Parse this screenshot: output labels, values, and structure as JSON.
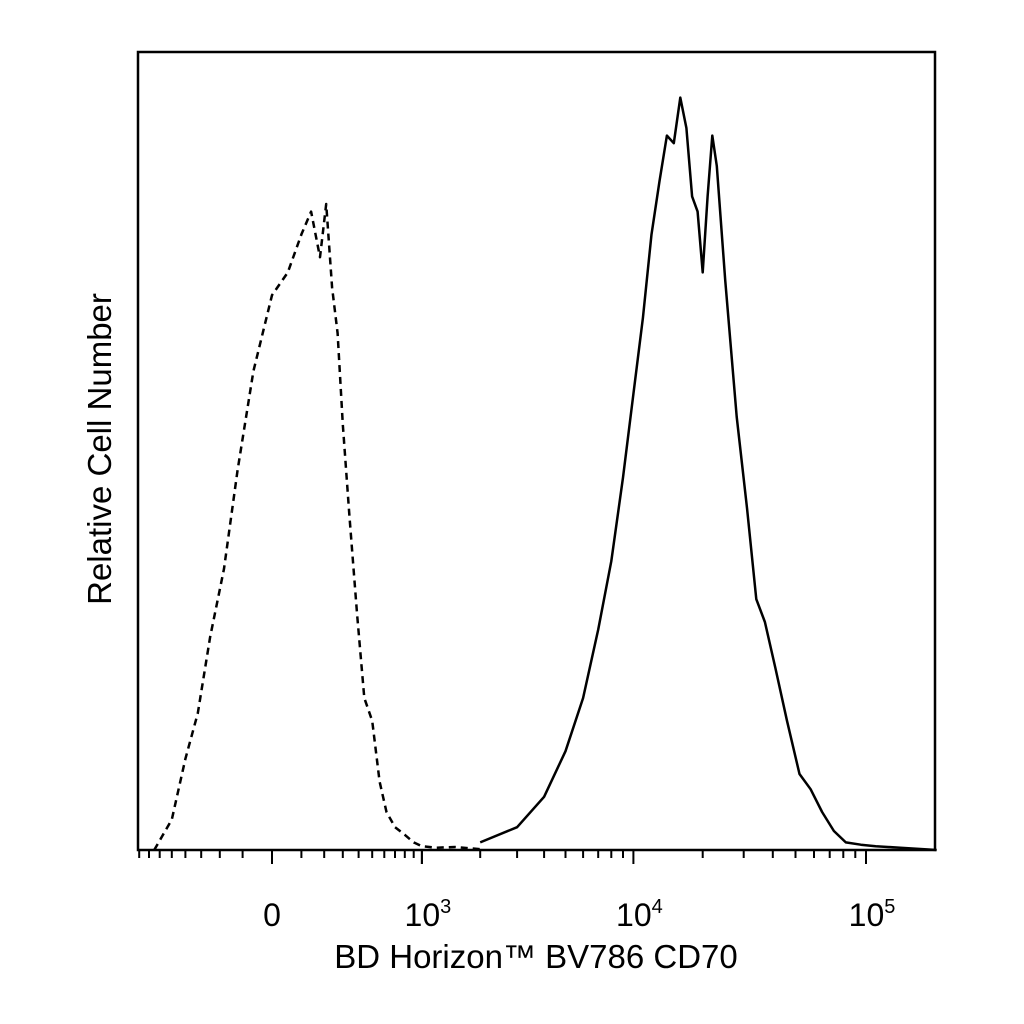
{
  "chart_data": {
    "type": "area",
    "title": "",
    "xlabel": "BD Horizon™ BV786 CD70",
    "ylabel": "Relative Cell Number",
    "x_scale": "biexponential",
    "xlim": [
      -1000,
      200000
    ],
    "ylim": [
      0,
      1
    ],
    "grid": false,
    "legend": "none",
    "x_ticks": [
      {
        "value": 0,
        "base": "0",
        "exp": ""
      },
      {
        "value": 1000,
        "base": "10",
        "exp": "3"
      },
      {
        "value": 10000,
        "base": "10",
        "exp": "4"
      },
      {
        "value": 100000,
        "base": "10",
        "exp": "5"
      }
    ],
    "series": [
      {
        "line_style": "dashed",
        "color": "#000000",
        "x": [
          -650,
          -500,
          -400,
          -320,
          -250,
          -180,
          -120,
          -60,
          0,
          50,
          100,
          140,
          180,
          210,
          240,
          270,
          300,
          340,
          390,
          440,
          500,
          560,
          620,
          700,
          800,
          900,
          1000,
          1200,
          1500,
          2000
        ],
        "y": [
          0.0,
          0.04,
          0.12,
          0.18,
          0.28,
          0.37,
          0.5,
          0.63,
          0.73,
          0.76,
          0.81,
          0.84,
          0.78,
          0.85,
          0.74,
          0.68,
          0.56,
          0.44,
          0.31,
          0.2,
          0.17,
          0.09,
          0.05,
          0.03,
          0.02,
          0.01,
          0.005,
          0.003,
          0.004,
          0.001
        ]
      },
      {
        "line_style": "solid",
        "color": "#000000",
        "x": [
          2000,
          3000,
          4000,
          5000,
          6000,
          7000,
          8000,
          9000,
          10000,
          11000,
          12000,
          13000,
          14000,
          15000,
          16000,
          17000,
          18000,
          19000,
          20000,
          21000,
          22000,
          23000,
          25000,
          28000,
          31000,
          34000,
          37000,
          41000,
          46000,
          52000,
          58000,
          65000,
          73000,
          82000,
          95000,
          110000,
          140000,
          200000
        ],
        "y": [
          0.01,
          0.03,
          0.07,
          0.13,
          0.2,
          0.29,
          0.38,
          0.49,
          0.6,
          0.7,
          0.81,
          0.88,
          0.94,
          0.93,
          0.99,
          0.95,
          0.86,
          0.84,
          0.76,
          0.86,
          0.94,
          0.9,
          0.75,
          0.57,
          0.45,
          0.33,
          0.3,
          0.24,
          0.17,
          0.1,
          0.08,
          0.05,
          0.025,
          0.01,
          0.007,
          0.005,
          0.003,
          0.0
        ]
      }
    ]
  }
}
